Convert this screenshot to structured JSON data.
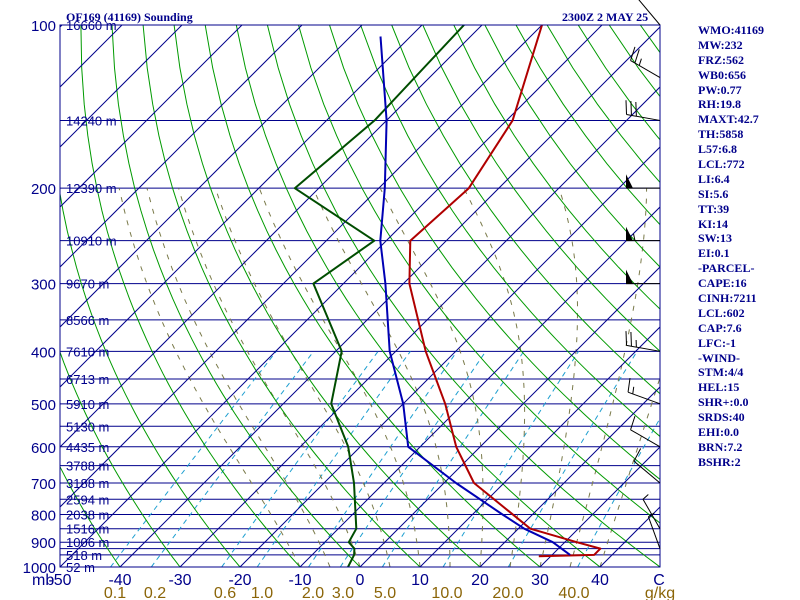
{
  "header": {
    "station": "OF169 (41169) Sounding",
    "valid_time": "2300Z  2 MAY 25"
  },
  "side_panel": [
    "WMO:41169",
    "MW:232",
    "FRZ:562",
    "WB0:656",
    "PW:0.77",
    "RH:19.8",
    "MAXT:42.7",
    "TH:5858",
    "L57:6.8",
    "LCL:772",
    "LI:6.4",
    "SI:5.6",
    "TT:39",
    "KI:14",
    "SW:13",
    "EI:0.1",
    "-PARCEL-",
    "CAPE:16",
    "CINH:7211",
    "LCL:602",
    "CAP:7.6",
    "LFC:-1",
    "-WIND-",
    "STM:4/4",
    "HEL:15",
    "SHR+:0.0",
    "SRDS:40",
    "EHI:0.0",
    "BRN:7.2",
    "BSHR:2"
  ],
  "colors": {
    "frame": "#00008b",
    "isobar": "#00008b",
    "isotherm": "#00008b",
    "dry_adiabat": "#009a00",
    "moist_adiabat": "#7a7a4a",
    "mixing_ratio": "#1e9fd0",
    "temperature": "#b00000",
    "dewpoint": "#004d00",
    "parcel": "#0000b4",
    "mixing_label": "#8b6508"
  },
  "chart_data": {
    "type": "line",
    "subtype": "skew-t log-p sounding",
    "x_axis_unit": "°C",
    "y_axis_unit": "mb",
    "mixing_ratio_unit": "g/kg",
    "pressure_scale": "log",
    "pressure_range": [
      1000,
      100
    ],
    "temperature_range_at_base": [
      -50,
      50
    ],
    "pressure_levels": [
      100,
      200,
      300,
      400,
      500,
      600,
      700,
      800,
      900,
      1000
    ],
    "isobar_levels": [
      100,
      150,
      200,
      250,
      300,
      350,
      400,
      450,
      500,
      550,
      600,
      650,
      700,
      750,
      800,
      850,
      900,
      925,
      950,
      1000
    ],
    "temperature_ticks": [
      -50,
      -40,
      -30,
      -20,
      -10,
      0,
      10,
      20,
      30,
      40
    ],
    "temperature_tick_labels": [
      "-50",
      "-40",
      "-30",
      "-20",
      "-10",
      "0",
      "10",
      "20",
      "30",
      "40"
    ],
    "corner_label": "C",
    "y_axis_label": "mb",
    "mixing_ratio_ticks": [
      0.1,
      0.2,
      0.6,
      1.0,
      2.0,
      3.0,
      5.0,
      10.0,
      20.0,
      40.0
    ],
    "mixing_ratio_labels": [
      "0.1",
      "0.2",
      "0.6",
      "1.0",
      "2.0",
      "3.0",
      "5.0",
      "10.0",
      "20.0",
      "40.0"
    ],
    "height_labels": [
      {
        "p": 100,
        "label": "16660 m"
      },
      {
        "p": 150,
        "label": "14240 m"
      },
      {
        "p": 200,
        "label": "12390 m"
      },
      {
        "p": 250,
        "label": "10910 m"
      },
      {
        "p": 300,
        "label": "9670 m"
      },
      {
        "p": 350,
        "label": "8566 m"
      },
      {
        "p": 400,
        "label": "7610 m"
      },
      {
        "p": 450,
        "label": "6713 m"
      },
      {
        "p": 500,
        "label": "5910 m"
      },
      {
        "p": 550,
        "label": "5130 m"
      },
      {
        "p": 600,
        "label": "4435 m"
      },
      {
        "p": 650,
        "label": "3788 m"
      },
      {
        "p": 700,
        "label": "3188 m"
      },
      {
        "p": 750,
        "label": "2594 m"
      },
      {
        "p": 800,
        "label": "2038 m"
      },
      {
        "p": 850,
        "label": "1516 m"
      },
      {
        "p": 900,
        "label": "1006 m"
      },
      {
        "p": 950,
        "label": "518 m"
      },
      {
        "p": 1000,
        "label": "52 m"
      }
    ],
    "series": [
      {
        "key": "temperature",
        "points": [
          {
            "p": 955,
            "t": 28
          },
          {
            "p": 950,
            "t": 37
          },
          {
            "p": 925,
            "t": 37
          },
          {
            "p": 900,
            "t": 32
          },
          {
            "p": 850,
            "t": 22
          },
          {
            "p": 700,
            "t": 5
          },
          {
            "p": 600,
            "t": -4
          },
          {
            "p": 500,
            "t": -13
          },
          {
            "p": 400,
            "t": -25
          },
          {
            "p": 300,
            "t": -39
          },
          {
            "p": 250,
            "t": -46
          },
          {
            "p": 200,
            "t": -45
          },
          {
            "p": 150,
            "t": -49
          },
          {
            "p": 100,
            "t": -60
          }
        ]
      },
      {
        "key": "dewpoint",
        "points": [
          {
            "p": 1000,
            "t": -2
          },
          {
            "p": 950,
            "t": -3
          },
          {
            "p": 925,
            "t": -4
          },
          {
            "p": 900,
            "t": -6
          },
          {
            "p": 850,
            "t": -7
          },
          {
            "p": 700,
            "t": -15
          },
          {
            "p": 600,
            "t": -22
          },
          {
            "p": 500,
            "t": -32
          },
          {
            "p": 400,
            "t": -39
          },
          {
            "p": 300,
            "t": -55
          },
          {
            "p": 250,
            "t": -52
          },
          {
            "p": 200,
            "t": -74
          },
          {
            "p": 150,
            "t": -72
          },
          {
            "p": 100,
            "t": -73
          }
        ]
      },
      {
        "key": "parcel",
        "points": [
          {
            "p": 950,
            "t": 33
          },
          {
            "p": 900,
            "t": 28
          },
          {
            "p": 850,
            "t": 21
          },
          {
            "p": 800,
            "t": 15
          },
          {
            "p": 700,
            "t": 2
          },
          {
            "p": 600,
            "t": -12
          },
          {
            "p": 500,
            "t": -20
          },
          {
            "p": 400,
            "t": -31
          },
          {
            "p": 300,
            "t": -43
          },
          {
            "p": 250,
            "t": -51
          },
          {
            "p": 200,
            "t": -59
          },
          {
            "p": 150,
            "t": -70
          },
          {
            "p": 105,
            "t": -85
          }
        ]
      }
    ],
    "wind_barbs": [
      {
        "p": 100,
        "dir": 320,
        "spd": 10
      },
      {
        "p": 125,
        "dir": 300,
        "spd": 25
      },
      {
        "p": 150,
        "dir": 280,
        "spd": 30
      },
      {
        "p": 200,
        "dir": 270,
        "spd": 50
      },
      {
        "p": 250,
        "dir": 270,
        "spd": 55
      },
      {
        "p": 300,
        "dir": 270,
        "spd": 50
      },
      {
        "p": 400,
        "dir": 280,
        "spd": 25
      },
      {
        "p": 500,
        "dir": 290,
        "spd": 15
      },
      {
        "p": 600,
        "dir": 300,
        "spd": 10
      },
      {
        "p": 700,
        "dir": 310,
        "spd": 10
      },
      {
        "p": 850,
        "dir": 330,
        "spd": 5
      },
      {
        "p": 925,
        "dir": 340,
        "spd": 5
      }
    ]
  }
}
